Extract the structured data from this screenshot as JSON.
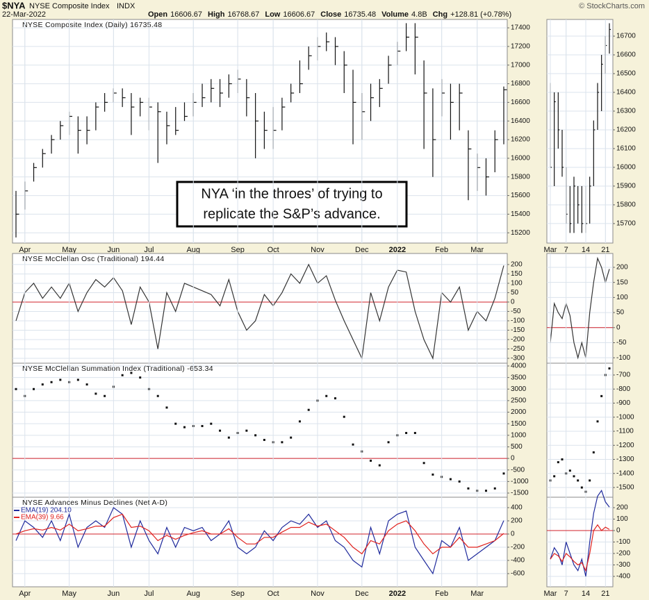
{
  "header": {
    "symbol": "$NYA",
    "name": "NYSE Composite Index",
    "exchange": "INDX",
    "date": "22-Mar-2022",
    "quote": [
      {
        "label": "Open",
        "value": "16606.67"
      },
      {
        "label": "High",
        "value": "16768.67"
      },
      {
        "label": "Low",
        "value": "16606.67"
      },
      {
        "label": "Close",
        "value": "16735.48"
      },
      {
        "label": "Volume",
        "value": "4.8B"
      },
      {
        "label": "Chg",
        "value": "+128.81 (+0.78%)"
      }
    ],
    "credit": "© StockCharts.com"
  },
  "chart_data": [
    {
      "type": "ohlc",
      "title": "NYSE Composite Index (Daily) 16735.48",
      "color": "#111111",
      "grid": true,
      "categories": [
        null,
        "Apr",
        null,
        null,
        null,
        null,
        "May",
        null,
        null,
        null,
        null,
        "Jun",
        null,
        null,
        null,
        "Jul",
        null,
        null,
        null,
        null,
        "Aug",
        null,
        null,
        null,
        null,
        "Sep",
        null,
        null,
        null,
        "Oct",
        null,
        null,
        null,
        null,
        "Nov",
        null,
        null,
        null,
        null,
        "Dec",
        null,
        null,
        null,
        "2022",
        null,
        null,
        null,
        null,
        "Feb",
        null,
        null,
        null,
        "Mar",
        null,
        null,
        null
      ],
      "high": [
        15650,
        15750,
        15950,
        16100,
        16250,
        16400,
        16500,
        16450,
        16450,
        16600,
        16700,
        16750,
        16750,
        16700,
        16650,
        16650,
        16600,
        16500,
        16550,
        16600,
        16700,
        16800,
        16850,
        16850,
        16900,
        16950,
        16850,
        16700,
        16500,
        16550,
        16650,
        16800,
        17050,
        17200,
        17300,
        17350,
        17300,
        17150,
        16950,
        16700,
        16800,
        16850,
        17100,
        17250,
        17450,
        17450,
        17050,
        16750,
        16850,
        16800,
        16800,
        16300,
        16050,
        16000,
        16300,
        16770
      ],
      "low": [
        15150,
        15450,
        15750,
        15900,
        16050,
        16200,
        16250,
        16050,
        16150,
        16300,
        16500,
        16600,
        16550,
        16250,
        16450,
        16300,
        15950,
        16150,
        16250,
        16400,
        16450,
        16550,
        16600,
        16550,
        16650,
        16700,
        16450,
        16000,
        16100,
        16100,
        16300,
        16600,
        16700,
        16950,
        17050,
        17150,
        17000,
        16700,
        16150,
        16200,
        16400,
        16550,
        16800,
        17000,
        17150,
        16900,
        16100,
        15800,
        16450,
        16200,
        16300,
        15550,
        15650,
        15600,
        15850,
        16150
      ],
      "close": [
        15400,
        15650,
        15900,
        16050,
        16200,
        16350,
        16450,
        16300,
        16300,
        16550,
        16600,
        16700,
        16650,
        16550,
        16600,
        16550,
        16500,
        16350,
        16300,
        16450,
        16600,
        16650,
        16750,
        16700,
        16800,
        16850,
        16650,
        16400,
        16300,
        16300,
        16550,
        16700,
        16800,
        17100,
        17200,
        17250,
        17200,
        17000,
        16600,
        16500,
        16650,
        16750,
        17000,
        17150,
        17300,
        17300,
        16700,
        16200,
        16700,
        16600,
        16700,
        16100,
        15900,
        15800,
        16200,
        16735.48
      ],
      "ylim": [
        15090,
        17490
      ],
      "yticks": [
        15200,
        15400,
        15600,
        15800,
        16000,
        16200,
        16400,
        16600,
        16800,
        17000,
        17200,
        17400
      ],
      "annotation": [
        "NYA ‘in the throes’ of trying to",
        "replicate the S&P’s advance."
      ]
    },
    {
      "type": "line",
      "title": "NYSE McClellan Osc (Traditional) 194.44",
      "color": "#333333",
      "grid": true,
      "hline": 0,
      "hline_color": "#d0202a",
      "values": [
        -100,
        50,
        100,
        20,
        80,
        20,
        100,
        -50,
        50,
        120,
        80,
        130,
        60,
        -120,
        80,
        0,
        -250,
        50,
        -50,
        100,
        80,
        60,
        40,
        -20,
        120,
        -50,
        -150,
        -100,
        40,
        -20,
        50,
        150,
        100,
        200,
        100,
        140,
        10,
        -100,
        -200,
        -300,
        50,
        -100,
        80,
        170,
        160,
        -50,
        -200,
        -300,
        50,
        0,
        80,
        -150,
        -50,
        -100,
        20,
        194.44
      ],
      "ylim": [
        -326,
        259
      ],
      "yticks": [
        200,
        150,
        100,
        50,
        0,
        -50,
        -100,
        -150,
        -200,
        -250,
        -300
      ]
    },
    {
      "type": "dot",
      "title": "NYSE McClellan Summation Index (Traditional) -653.34",
      "color": "#111111",
      "grid": true,
      "hline": 0,
      "hline_color": "#d0202a",
      "values": [
        3000,
        2700,
        3000,
        3200,
        3300,
        3400,
        3300,
        3400,
        3200,
        2800,
        2700,
        3100,
        3600,
        3700,
        3500,
        3000,
        2700,
        2200,
        1500,
        1350,
        1400,
        1400,
        1500,
        1200,
        900,
        1100,
        1200,
        1000,
        800,
        700,
        700,
        900,
        1600,
        2100,
        2500,
        2700,
        2600,
        1800,
        600,
        300,
        -100,
        -300,
        700,
        1000,
        1100,
        1100,
        -200,
        -700,
        -800,
        -900,
        -1000,
        -1300,
        -1400,
        -1400,
        -1300,
        -653.34
      ],
      "ylim": [
        -1680,
        4120
      ],
      "yticks": [
        4000,
        3500,
        3000,
        2500,
        2000,
        1500,
        1000,
        500,
        0,
        -500,
        -1000,
        -1500
      ]
    },
    {
      "type": "line",
      "title": "NYSE Advances Minus Declines (Net A-D)",
      "grid": true,
      "hline": 0,
      "hline_color": "#d0202a",
      "categories": [
        null,
        "Apr",
        null,
        null,
        null,
        null,
        "May",
        null,
        null,
        null,
        null,
        "Jun",
        null,
        null,
        null,
        "Jul",
        null,
        null,
        null,
        null,
        "Aug",
        null,
        null,
        null,
        null,
        "Sep",
        null,
        null,
        null,
        "Oct",
        null,
        null,
        null,
        null,
        "Nov",
        null,
        null,
        null,
        null,
        "Dec",
        null,
        null,
        null,
        "2022",
        null,
        null,
        null,
        null,
        "Feb",
        null,
        null,
        null,
        "Mar",
        null,
        null,
        null
      ],
      "series": [
        {
          "name": "EMA(19) 204.10",
          "color": "#1f2a9c",
          "values": [
            -100,
            200,
            100,
            -50,
            200,
            -100,
            300,
            -200,
            100,
            200,
            100,
            400,
            300,
            -200,
            200,
            -100,
            -300,
            100,
            -200,
            100,
            50,
            100,
            -100,
            0,
            200,
            -200,
            -300,
            -200,
            50,
            -100,
            100,
            200,
            150,
            300,
            100,
            200,
            -100,
            -200,
            -400,
            -500,
            100,
            -300,
            200,
            300,
            350,
            -200,
            -400,
            -600,
            -100,
            -200,
            100,
            -400,
            -300,
            -200,
            -100,
            204.1
          ]
        },
        {
          "name": "EMA(39) 9.66",
          "color": "#e0201c",
          "values": [
            0,
            50,
            80,
            60,
            100,
            60,
            150,
            50,
            80,
            120,
            120,
            250,
            300,
            100,
            120,
            50,
            -100,
            -20,
            -80,
            -20,
            20,
            50,
            0,
            0,
            80,
            -50,
            -150,
            -150,
            -50,
            -50,
            30,
            100,
            100,
            180,
            120,
            150,
            50,
            -50,
            -200,
            -300,
            -100,
            -150,
            50,
            150,
            200,
            50,
            -150,
            -300,
            -200,
            -200,
            -50,
            -200,
            -200,
            -150,
            -100,
            9.66
          ]
        }
      ],
      "ylim": [
        -800,
        558
      ],
      "yticks": [
        400,
        200,
        0,
        -200,
        -400,
        -600
      ]
    },
    {
      "type": "ohlc",
      "color": "#111111",
      "grid": true,
      "categories": [
        "Mar",
        null,
        null,
        null,
        "7",
        null,
        null,
        null,
        null,
        "14",
        null,
        null,
        null,
        null,
        "21",
        null
      ],
      "high": [
        16450,
        16400,
        16400,
        16200,
        16000,
        15900,
        15950,
        15900,
        15900,
        15900,
        15950,
        16250,
        16450,
        16600,
        16700,
        16768.67
      ],
      "low": [
        16000,
        15900,
        16100,
        15950,
        15700,
        15650,
        15650,
        15700,
        15650,
        15650,
        15700,
        15900,
        16200,
        16300,
        16500,
        16606.67
      ],
      "close": [
        16000,
        16350,
        16200,
        16000,
        15750,
        15700,
        15900,
        15800,
        15700,
        15700,
        15900,
        16200,
        16400,
        16550,
        16650,
        16735.48
      ],
      "ylim": [
        15596,
        16789
      ],
      "yticks": [
        15700,
        15800,
        15900,
        16000,
        16100,
        16200,
        16300,
        16400,
        16500,
        16600,
        16700
      ]
    },
    {
      "type": "line",
      "color": "#333333",
      "grid": true,
      "hline": 0,
      "hline_color": "#d0202a",
      "values": [
        -50,
        80,
        50,
        30,
        80,
        40,
        -50,
        -100,
        -50,
        -100,
        50,
        150,
        230,
        200,
        150,
        194.44
      ],
      "ylim": [
        -118,
        246
      ],
      "yticks": [
        200,
        150,
        100,
        50,
        0,
        -50,
        -100
      ]
    },
    {
      "type": "dot",
      "color": "#111111",
      "grid": true,
      "values": [
        -1450,
        -1420,
        -1320,
        -1300,
        -1400,
        -1380,
        -1420,
        -1450,
        -1500,
        -1530,
        -1450,
        -1250,
        -1030,
        -850,
        -700,
        -653.34
      ],
      "ylim": [
        -1569,
        -616
      ],
      "yticks": [
        -700,
        -800,
        -900,
        -1000,
        -1100,
        -1200,
        -1300,
        -1400,
        -1500
      ]
    },
    {
      "type": "line",
      "grid": true,
      "hline": 0,
      "hline_color": "#d0202a",
      "categories": [
        "Mar",
        null,
        null,
        null,
        "7",
        null,
        null,
        null,
        null,
        "14",
        null,
        null,
        null,
        null,
        "21",
        null
      ],
      "series": [
        {
          "color": "#1f2a9c",
          "values": [
            -250,
            -150,
            -200,
            -300,
            -100,
            -200,
            -300,
            -350,
            -250,
            -400,
            -100,
            150,
            300,
            350,
            250,
            204.1
          ]
        },
        {
          "color": "#e0201c",
          "values": [
            -250,
            -200,
            -220,
            -270,
            -200,
            -230,
            -270,
            -300,
            -280,
            -350,
            -200,
            0,
            50,
            0,
            30,
            9.66
          ]
        }
      ],
      "ylim": [
        -491,
        291
      ],
      "yticks": [
        200,
        100,
        0,
        -100,
        -200,
        -300,
        -400
      ]
    }
  ]
}
